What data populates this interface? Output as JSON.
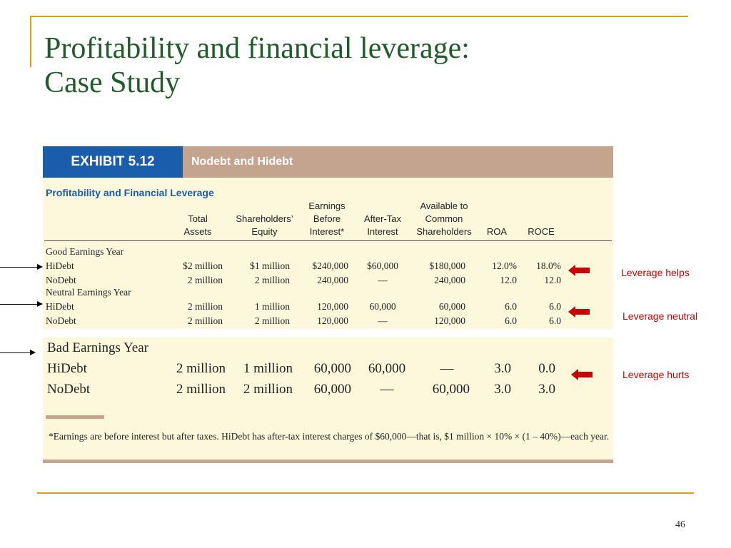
{
  "slide": {
    "title_line1": "Profitability and financial leverage:",
    "title_line2": "Case Study",
    "page_number": "46"
  },
  "exhibit": {
    "label": "EXHIBIT 5.12",
    "subtitle": "Nodebt and Hidebt",
    "section_title": "Profitability and Financial Leverage",
    "columns": [
      [
        "Total",
        "Assets"
      ],
      [
        "Shareholders’",
        "Equity"
      ],
      [
        "Earnings",
        "Before",
        "Interest*"
      ],
      [
        "After-Tax",
        "Interest"
      ],
      [
        "Available to",
        "Common",
        "Shareholders"
      ],
      [
        "ROA"
      ],
      [
        "ROCE"
      ]
    ],
    "groups": {
      "good": {
        "title": "Good Earnings Year",
        "rows": [
          [
            "HiDebt",
            "$2 million",
            "$1 million",
            "$240,000",
            "$60,000",
            "$180,000",
            "12.0%",
            "18.0%"
          ],
          [
            "NoDebt",
            "2 million",
            "2 million",
            "240,000",
            "—",
            "240,000",
            "12.0",
            "12.0"
          ]
        ]
      },
      "neutral": {
        "title": "Neutral Earnings Year",
        "rows": [
          [
            "HiDebt",
            "2 million",
            "1 million",
            "120,000",
            "60,000",
            "60,000",
            "6.0",
            "6.0"
          ],
          [
            "NoDebt",
            "2 million",
            "2 million",
            "120,000",
            "—",
            "120,000",
            "6.0",
            "6.0"
          ]
        ]
      },
      "bad": {
        "title": "Bad Earnings Year",
        "rows": [
          [
            "HiDebt",
            "2 million",
            "1 million",
            "60,000",
            "60,000",
            "—",
            "3.0",
            "0.0"
          ],
          [
            "NoDebt",
            "2 million",
            "2 million",
            "60,000",
            "—",
            "60,000",
            "3.0",
            "3.0"
          ]
        ]
      }
    },
    "footnote": "*Earnings are before interest but after taxes. HiDebt has after-tax interest charges of $60,000—that is, $1 million × 10% × (1 – 40%)—each year."
  },
  "callouts": {
    "helps": "Leverage helps",
    "neutral": "Leverage neutral",
    "hurts": "Leverage hurts"
  },
  "colors": {
    "title_green": "#1f5c2a",
    "frame_gold": "#d4a017",
    "exhibit_blue": "#1a5eab",
    "exhibit_tan": "#c4a48e",
    "exhibit_bg": "#fdf8dc",
    "callout_red": "#cc0000"
  }
}
